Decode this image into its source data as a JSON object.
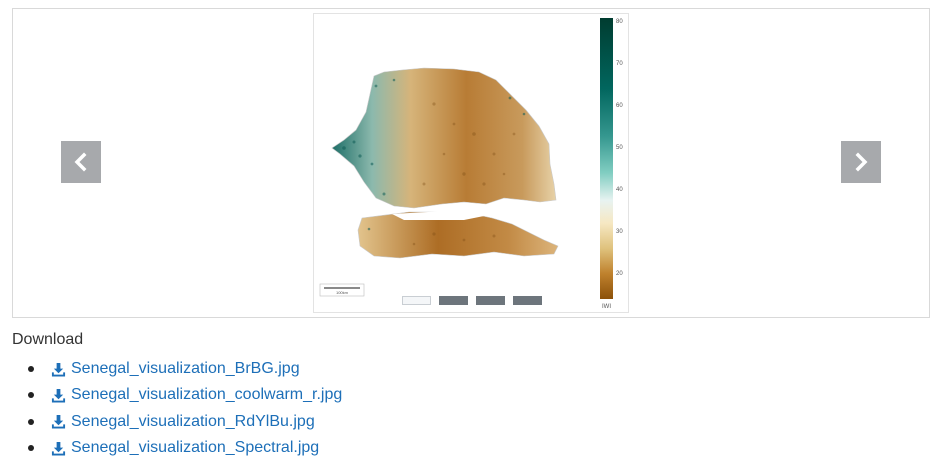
{
  "carousel": {
    "image": {
      "type": "map",
      "subject": "Senegal",
      "colorbar": {
        "ticks": [
          "80",
          "70",
          "60",
          "50",
          "40",
          "30",
          "20"
        ],
        "label": "IWI"
      },
      "scale_label": "100km"
    },
    "indicator_count": 4,
    "active_indicator": 1
  },
  "download": {
    "title": "Download",
    "files": [
      "Senegal_visualization_BrBG.jpg",
      "Senegal_visualization_coolwarm_r.jpg",
      "Senegal_visualization_RdYlBu.jpg",
      "Senegal_visualization_Spectral.jpg"
    ]
  },
  "colors": {
    "link": "#1d6fb8",
    "nav_button": "#a7a9ac",
    "indicator": "#6d757c"
  },
  "icons": {
    "prev": "chevron-left-icon",
    "next": "chevron-right-icon",
    "download": "download-icon"
  }
}
